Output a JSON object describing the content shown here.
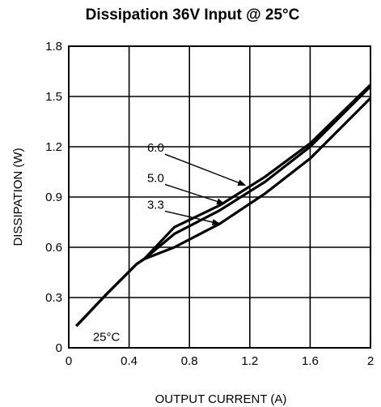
{
  "chart_data": {
    "type": "line",
    "title": "Dissipation 36V Input @ 25°C",
    "xlabel": "OUTPUT CURRENT (A)",
    "ylabel": "DISSIPATION (W)",
    "xlim": [
      0,
      2
    ],
    "ylim": [
      0,
      1.8
    ],
    "x_ticks": [
      0,
      0.4,
      0.8,
      1.2,
      1.6,
      2
    ],
    "x_tick_labels": [
      "0",
      "0.4",
      "0.8",
      "1.2",
      "1.6",
      "2"
    ],
    "y_ticks": [
      0,
      0.3,
      0.6,
      0.9,
      1.2,
      1.5,
      1.8
    ],
    "y_tick_labels": [
      "0",
      "0.3",
      "0.6",
      "0.9",
      "1.2",
      "1.5",
      "1.8"
    ],
    "grid": true,
    "series": [
      {
        "name": "6.0",
        "x": [
          0.05,
          0.25,
          0.45,
          0.5,
          0.7,
          1.0,
          1.3,
          1.6,
          2.0
        ],
        "y": [
          0.13,
          0.32,
          0.5,
          0.53,
          0.72,
          0.85,
          1.02,
          1.22,
          1.57
        ]
      },
      {
        "name": "5.0",
        "x": [
          0.05,
          0.25,
          0.45,
          0.5,
          0.7,
          1.0,
          1.3,
          1.6,
          2.0
        ],
        "y": [
          0.13,
          0.32,
          0.5,
          0.53,
          0.68,
          0.82,
          0.99,
          1.2,
          1.56
        ]
      },
      {
        "name": "3.3",
        "x": [
          0.05,
          0.25,
          0.45,
          0.5,
          0.7,
          1.0,
          1.3,
          1.6,
          2.0
        ],
        "y": [
          0.13,
          0.32,
          0.5,
          0.53,
          0.6,
          0.74,
          0.92,
          1.13,
          1.49
        ]
      }
    ],
    "annotations": [
      {
        "text": "6.0",
        "label_at": [
          0.52,
          1.17
        ],
        "arrow_to": [
          1.17,
          0.97
        ]
      },
      {
        "text": "5.0",
        "label_at": [
          0.52,
          0.99
        ],
        "arrow_to": [
          1.03,
          0.86
        ]
      },
      {
        "text": "3.3",
        "label_at": [
          0.52,
          0.83
        ],
        "arrow_to": [
          1.0,
          0.74
        ]
      },
      {
        "text": "25°C",
        "label_at": [
          0.16,
          0.04
        ],
        "arrow_to": null
      }
    ]
  }
}
